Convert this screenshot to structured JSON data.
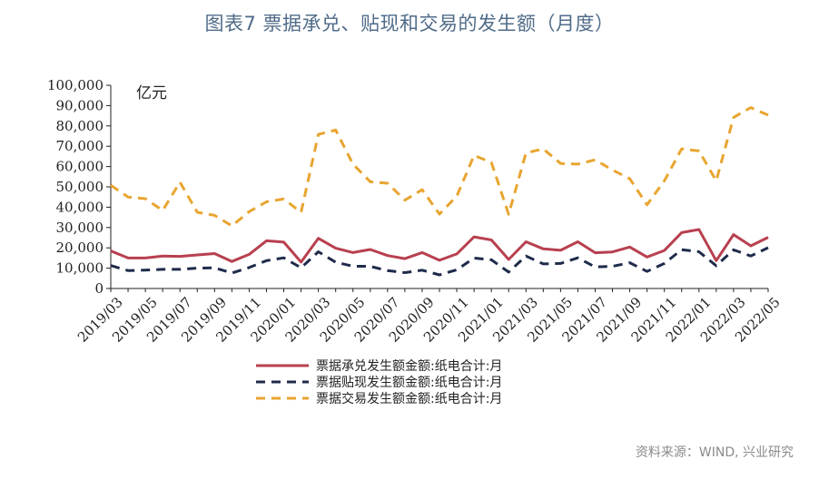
{
  "title": "图表7  票据承兑、贴现和交易的发生额（月度）",
  "source": "资料来源：WIND, 兴业研究",
  "chart_data": {
    "type": "line",
    "unit_label": "亿元",
    "ylim": [
      0,
      100000
    ],
    "y_ticks": [
      "0",
      "10,000",
      "20,000",
      "30,000",
      "40,000",
      "50,000",
      "60,000",
      "70,000",
      "80,000",
      "90,000",
      "100,000"
    ],
    "x_tick_labels": [
      "2019/03",
      "2019/05",
      "2019/07",
      "2019/09",
      "2019/11",
      "2020/01",
      "2020/03",
      "2020/05",
      "2020/07",
      "2020/09",
      "2020/11",
      "2021/01",
      "2021/03",
      "2021/05",
      "2021/07",
      "2021/09",
      "2021/11",
      "2022/01",
      "2022/03",
      "2022/05"
    ],
    "x": [
      "2019/03",
      "2019/04",
      "2019/05",
      "2019/06",
      "2019/07",
      "2019/08",
      "2019/09",
      "2019/10",
      "2019/11",
      "2019/12",
      "2020/01",
      "2020/02",
      "2020/03",
      "2020/04",
      "2020/05",
      "2020/06",
      "2020/07",
      "2020/08",
      "2020/09",
      "2020/10",
      "2020/11",
      "2020/12",
      "2021/01",
      "2021/02",
      "2021/03",
      "2021/04",
      "2021/05",
      "2021/06",
      "2021/07",
      "2021/08",
      "2021/09",
      "2021/10",
      "2021/11",
      "2021/12",
      "2022/01",
      "2022/02",
      "2022/03",
      "2022/04",
      "2022/05"
    ],
    "legend_position": "bottom",
    "series": [
      {
        "name": "票据承兑发生额金额:纸电合计:月",
        "color": "#b8404f",
        "dash": "solid",
        "values": [
          18500,
          15000,
          15000,
          16000,
          15800,
          16500,
          17200,
          13300,
          16800,
          23500,
          22800,
          13000,
          24700,
          19800,
          17700,
          19200,
          16200,
          14700,
          17700,
          13900,
          17000,
          25400,
          23900,
          14300,
          23000,
          19500,
          18800,
          23000,
          17600,
          18000,
          20400,
          15500,
          18700,
          27500,
          29000,
          13700,
          26500,
          21000,
          25200
        ]
      },
      {
        "name": "票据贴现发生额金额:纸电合计:月",
        "color": "#1f2b4a",
        "dash": "dash",
        "values": [
          11300,
          8800,
          9000,
          9400,
          9400,
          10000,
          10200,
          7600,
          10300,
          13700,
          15100,
          10200,
          18100,
          12900,
          11000,
          10900,
          8800,
          7800,
          9000,
          6700,
          9200,
          15000,
          14100,
          8100,
          16000,
          12100,
          12300,
          15100,
          10600,
          10900,
          12700,
          8400,
          12300,
          19100,
          18100,
          11200,
          19000,
          16000,
          20100
        ]
      },
      {
        "name": "票据交易发生额金额:纸电合计:月",
        "color": "#e8a530",
        "dash": "dash",
        "values": [
          50800,
          45000,
          44200,
          38400,
          52300,
          37500,
          36000,
          30800,
          37800,
          42700,
          44000,
          37500,
          75800,
          78000,
          61200,
          52500,
          51800,
          43500,
          48600,
          36600,
          45500,
          65500,
          62000,
          36500,
          66700,
          68700,
          61500,
          61200,
          63300,
          58300,
          54000,
          41200,
          53000,
          68700,
          67700,
          53000,
          84200,
          89000,
          85300
        ]
      }
    ]
  }
}
